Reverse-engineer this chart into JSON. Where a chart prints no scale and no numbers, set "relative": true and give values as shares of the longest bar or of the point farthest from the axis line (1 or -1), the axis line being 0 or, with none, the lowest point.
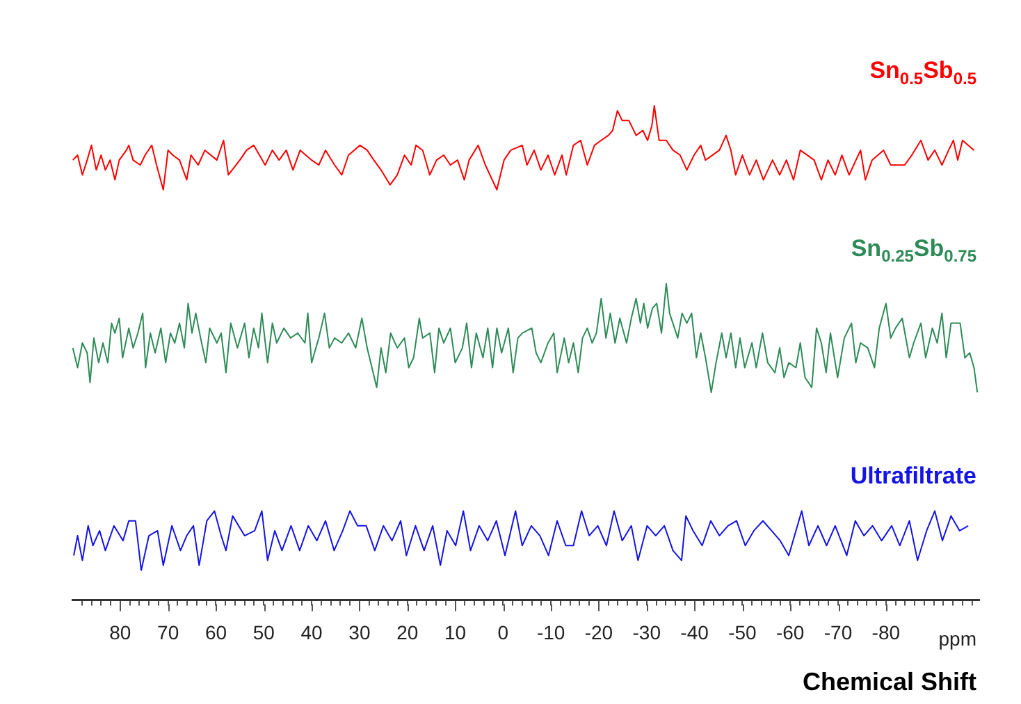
{
  "chart_data": {
    "type": "line",
    "relative": true,
    "xlabel": "Chemical Shift",
    "annotations": [
      "ppm"
    ],
    "marker": "none",
    "line_style": "solid",
    "xlim": [
      90,
      -99.5
    ],
    "xticks": [
      80,
      70,
      60,
      50,
      40,
      30,
      20,
      10,
      0,
      -10,
      -20,
      -30,
      -40,
      -50,
      -60,
      -70,
      -80,
      {
        "value": -90,
        "label": null
      },
      {
        "value": 88,
        "label": null
      },
      {
        "value": 86,
        "label": null
      },
      {
        "value": 84,
        "label": null
      },
      {
        "value": 82,
        "label": null
      },
      {
        "value": 78,
        "label": null
      },
      {
        "value": 76,
        "label": null
      },
      {
        "value": 74,
        "label": null
      },
      {
        "value": 72,
        "label": null
      },
      {
        "value": 68,
        "label": null
      },
      {
        "value": 66,
        "label": null
      },
      {
        "value": 64,
        "label": null
      },
      {
        "value": 62,
        "label": null
      },
      {
        "value": 58,
        "label": null
      },
      {
        "value": 56,
        "label": null
      },
      {
        "value": 54,
        "label": null
      },
      {
        "value": 52,
        "label": null
      },
      {
        "value": 48,
        "label": null
      },
      {
        "value": 46,
        "label": null
      },
      {
        "value": 44,
        "label": null
      },
      {
        "value": 42,
        "label": null
      },
      {
        "value": 38,
        "label": null
      },
      {
        "value": 36,
        "label": null
      },
      {
        "value": 34,
        "label": null
      },
      {
        "value": 32,
        "label": null
      },
      {
        "value": 28,
        "label": null
      },
      {
        "value": 26,
        "label": null
      },
      {
        "value": 24,
        "label": null
      },
      {
        "value": 22,
        "label": null
      },
      {
        "value": 18,
        "label": null
      },
      {
        "value": 16,
        "label": null
      },
      {
        "value": 14,
        "label": null
      },
      {
        "value": 12,
        "label": null
      },
      {
        "value": 8,
        "label": null
      },
      {
        "value": 6,
        "label": null
      },
      {
        "value": 4,
        "label": null
      },
      {
        "value": 2,
        "label": null
      },
      {
        "value": -2,
        "label": null
      },
      {
        "value": -4,
        "label": null
      },
      {
        "value": -6,
        "label": null
      },
      {
        "value": -8,
        "label": null
      },
      {
        "value": -12,
        "label": null
      },
      {
        "value": -14,
        "label": null
      },
      {
        "value": -16,
        "label": null
      },
      {
        "value": -18,
        "label": null
      },
      {
        "value": -22,
        "label": null
      },
      {
        "value": -24,
        "label": null
      },
      {
        "value": -26,
        "label": null
      },
      {
        "value": -28,
        "label": null
      },
      {
        "value": -32,
        "label": null
      },
      {
        "value": -34,
        "label": null
      },
      {
        "value": -36,
        "label": null
      },
      {
        "value": -38,
        "label": null
      },
      {
        "value": -42,
        "label": null
      },
      {
        "value": -44,
        "label": null
      },
      {
        "value": -46,
        "label": null
      },
      {
        "value": -48,
        "label": null
      },
      {
        "value": -52,
        "label": null
      },
      {
        "value": -54,
        "label": null
      },
      {
        "value": -56,
        "label": null
      },
      {
        "value": -58,
        "label": null
      },
      {
        "value": -62,
        "label": null
      },
      {
        "value": -64,
        "label": null
      },
      {
        "value": -66,
        "label": null
      },
      {
        "value": -68,
        "label": null
      },
      {
        "value": -72,
        "label": null
      },
      {
        "value": -74,
        "label": null
      },
      {
        "value": -76,
        "label": null
      },
      {
        "value": -78,
        "label": null
      },
      {
        "value": -82,
        "label": null
      },
      {
        "value": -84,
        "label": null
      },
      {
        "value": -86,
        "label": null
      },
      {
        "value": -88,
        "label": null
      },
      {
        "value": -92,
        "label": null
      },
      {
        "value": -94,
        "label": null
      },
      {
        "value": -96,
        "label": null
      },
      {
        "value": -98,
        "label": null
      }
    ],
    "series": [
      {
        "name": "Sn$_{0.5}$Sb$_{0.5}$",
        "color": "#ff0000",
        "x": [
          89.9,
          88.9,
          87.9,
          86.9,
          86.0,
          85.0,
          84.0,
          83.1,
          82.1,
          81.1,
          80.2,
          78.7,
          78.2,
          77.3,
          75.8,
          74.8,
          73.4,
          72.4,
          71.0,
          70.0,
          69.0,
          67.6,
          66.1,
          65.2,
          63.7,
          62.3,
          59.8,
          58.4,
          57.4,
          55.0,
          53.6,
          52.1,
          49.7,
          48.2,
          46.8,
          45.3,
          43.9,
          42.4,
          40.0,
          38.5,
          37.1,
          35.2,
          33.7,
          32.3,
          29.9,
          28.4,
          27.0,
          25.5,
          23.6,
          22.1,
          20.6,
          19.2,
          18.2,
          16.8,
          15.3,
          13.9,
          12.4,
          11.0,
          9.5,
          8.1,
          7.1,
          5.2,
          3.7,
          1.3,
          -0.2,
          -1.6,
          -4.0,
          -5.0,
          -6.5,
          -7.9,
          -9.4,
          -10.8,
          -12.3,
          -13.2,
          -14.7,
          -16.2,
          -17.6,
          -19.1,
          -20.5,
          -22.0,
          -22.9,
          -23.9,
          -24.9,
          -26.3,
          -27.8,
          -29.2,
          -30.2,
          -31.1,
          -31.6,
          -32.6,
          -34.1,
          -35.5,
          -37.0,
          -38.4,
          -39.9,
          -41.3,
          -42.3,
          -45.2,
          -46.6,
          -47.6,
          -48.6,
          -50.0,
          -51.5,
          -52.9,
          -54.4,
          -56.3,
          -57.8,
          -59.2,
          -60.7,
          -62.1,
          -65.0,
          -66.5,
          -67.9,
          -69.4,
          -70.8,
          -72.3,
          -74.7,
          -75.7,
          -77.1,
          -79.5,
          -81.0,
          -83.9,
          -85.4,
          -87.3,
          -88.8,
          -90.2,
          -91.7,
          -93.1,
          -94.1,
          -95.0,
          -96.0,
          -98.4
        ],
        "values": [
          0.89,
          0.9,
          0.86,
          0.89,
          0.92,
          0.87,
          0.9,
          0.87,
          0.89,
          0.85,
          0.89,
          0.91,
          0.92,
          0.89,
          0.88,
          0.9,
          0.92,
          0.88,
          0.83,
          0.91,
          0.9,
          0.89,
          0.85,
          0.9,
          0.88,
          0.91,
          0.89,
          0.93,
          0.86,
          0.89,
          0.91,
          0.92,
          0.88,
          0.91,
          0.89,
          0.91,
          0.87,
          0.91,
          0.89,
          0.88,
          0.91,
          0.88,
          0.86,
          0.9,
          0.92,
          0.91,
          0.89,
          0.87,
          0.84,
          0.86,
          0.9,
          0.88,
          0.92,
          0.91,
          0.86,
          0.89,
          0.9,
          0.88,
          0.89,
          0.85,
          0.89,
          0.92,
          0.88,
          0.83,
          0.89,
          0.91,
          0.92,
          0.88,
          0.91,
          0.87,
          0.9,
          0.86,
          0.9,
          0.86,
          0.92,
          0.93,
          0.88,
          0.92,
          0.93,
          0.94,
          0.95,
          0.99,
          0.97,
          0.97,
          0.94,
          0.95,
          0.93,
          0.96,
          1.0,
          0.93,
          0.93,
          0.91,
          0.9,
          0.87,
          0.9,
          0.92,
          0.89,
          0.91,
          0.94,
          0.91,
          0.86,
          0.9,
          0.86,
          0.89,
          0.85,
          0.89,
          0.86,
          0.89,
          0.85,
          0.91,
          0.89,
          0.85,
          0.89,
          0.86,
          0.9,
          0.86,
          0.91,
          0.85,
          0.89,
          0.91,
          0.88,
          0.88,
          0.9,
          0.93,
          0.89,
          0.91,
          0.88,
          0.91,
          0.93,
          0.89,
          0.93,
          0.91
        ]
      },
      {
        "name": "Sn$_{0.25}$Sb$_{0.75}$",
        "color": "#2e8b57",
        "x": [
          89.9,
          88.9,
          87.9,
          86.9,
          86.3,
          85.5,
          84.5,
          83.6,
          82.6,
          81.8,
          81.1,
          80.2,
          79.5,
          78.2,
          77.3,
          76.3,
          75.3,
          74.7,
          73.7,
          72.7,
          71.5,
          70.5,
          69.5,
          68.6,
          67.6,
          66.6,
          65.8,
          65.0,
          64.2,
          63.2,
          62.1,
          61.3,
          59.8,
          58.9,
          57.9,
          56.9,
          55.5,
          54.0,
          53.1,
          52.1,
          51.1,
          50.4,
          49.2,
          48.2,
          47.3,
          45.8,
          44.4,
          42.9,
          41.4,
          40.8,
          40.0,
          38.5,
          37.3,
          36.3,
          35.2,
          33.7,
          32.3,
          30.8,
          29.5,
          28.4,
          27.4,
          26.4,
          25.5,
          24.5,
          23.5,
          22.1,
          20.6,
          19.7,
          18.7,
          17.5,
          16.8,
          15.3,
          14.3,
          13.4,
          12.4,
          11.0,
          10.0,
          8.5,
          7.6,
          6.6,
          5.6,
          4.2,
          3.2,
          2.2,
          1.3,
          0.3,
          -1.1,
          -2.1,
          -3.1,
          -4.0,
          -6.0,
          -6.9,
          -7.9,
          -9.4,
          -10.6,
          -11.3,
          -12.8,
          -13.7,
          -14.7,
          -15.7,
          -16.6,
          -17.6,
          -18.6,
          -19.5,
          -20.5,
          -21.5,
          -22.4,
          -23.4,
          -24.4,
          -25.8,
          -26.8,
          -27.8,
          -28.7,
          -29.4,
          -30.2,
          -31.2,
          -32.1,
          -33.1,
          -34.1,
          -34.8,
          -36.5,
          -37.4,
          -38.4,
          -39.4,
          -40.4,
          -41.3,
          -42.3,
          -43.5,
          -44.5,
          -45.7,
          -46.6,
          -47.6,
          -48.6,
          -49.5,
          -50.5,
          -52.0,
          -52.9,
          -54.2,
          -55.3,
          -56.8,
          -57.8,
          -58.7,
          -59.7,
          -61.2,
          -62.1,
          -63.1,
          -64.5,
          -65.5,
          -66.5,
          -67.5,
          -68.4,
          -69.9,
          -71.3,
          -72.8,
          -73.7,
          -74.7,
          -76.2,
          -77.6,
          -78.6,
          -80.0,
          -81.0,
          -82.0,
          -83.4,
          -84.9,
          -85.8,
          -87.3,
          -88.3,
          -89.7,
          -90.7,
          -91.7,
          -92.6,
          -93.6,
          -95.5,
          -96.5,
          -97.5,
          -98.4,
          -99.1
        ],
        "values": [
          0.51,
          0.47,
          0.52,
          0.5,
          0.44,
          0.53,
          0.48,
          0.52,
          0.48,
          0.56,
          0.54,
          0.57,
          0.49,
          0.55,
          0.51,
          0.54,
          0.58,
          0.47,
          0.54,
          0.5,
          0.55,
          0.48,
          0.54,
          0.52,
          0.56,
          0.51,
          0.6,
          0.54,
          0.58,
          0.53,
          0.48,
          0.55,
          0.52,
          0.54,
          0.46,
          0.56,
          0.51,
          0.56,
          0.49,
          0.55,
          0.51,
          0.58,
          0.48,
          0.56,
          0.52,
          0.55,
          0.53,
          0.54,
          0.52,
          0.58,
          0.48,
          0.53,
          0.58,
          0.51,
          0.53,
          0.52,
          0.54,
          0.51,
          0.57,
          0.51,
          0.47,
          0.43,
          0.51,
          0.46,
          0.54,
          0.51,
          0.53,
          0.47,
          0.49,
          0.57,
          0.53,
          0.54,
          0.46,
          0.55,
          0.52,
          0.55,
          0.48,
          0.51,
          0.56,
          0.47,
          0.54,
          0.49,
          0.55,
          0.47,
          0.55,
          0.5,
          0.55,
          0.46,
          0.53,
          0.54,
          0.55,
          0.5,
          0.48,
          0.52,
          0.54,
          0.46,
          0.53,
          0.48,
          0.52,
          0.46,
          0.53,
          0.55,
          0.52,
          0.54,
          0.61,
          0.53,
          0.58,
          0.52,
          0.57,
          0.52,
          0.57,
          0.61,
          0.56,
          0.6,
          0.55,
          0.59,
          0.6,
          0.54,
          0.64,
          0.58,
          0.53,
          0.58,
          0.56,
          0.58,
          0.49,
          0.54,
          0.49,
          0.42,
          0.48,
          0.54,
          0.49,
          0.54,
          0.47,
          0.53,
          0.47,
          0.52,
          0.47,
          0.54,
          0.48,
          0.46,
          0.51,
          0.45,
          0.48,
          0.47,
          0.52,
          0.45,
          0.43,
          0.55,
          0.52,
          0.46,
          0.54,
          0.45,
          0.53,
          0.56,
          0.48,
          0.52,
          0.51,
          0.47,
          0.55,
          0.6,
          0.53,
          0.55,
          0.57,
          0.49,
          0.52,
          0.56,
          0.49,
          0.55,
          0.52,
          0.58,
          0.49,
          0.56,
          0.56,
          0.49,
          0.5,
          0.47,
          0.42
        ]
      },
      {
        "name": "Ultrafiltrate",
        "color": "#1414e6",
        "x": [
          89.7,
          88.9,
          87.9,
          86.7,
          85.7,
          84.3,
          83.1,
          81.3,
          79.4,
          78.2,
          76.8,
          75.6,
          74.0,
          72.2,
          71.0,
          69.2,
          67.4,
          66.1,
          64.7,
          63.5,
          61.9,
          60.3,
          58.9,
          57.9,
          56.5,
          54.0,
          51.9,
          50.4,
          49.2,
          47.7,
          46.2,
          44.3,
          42.5,
          40.7,
          38.9,
          37.1,
          35.3,
          33.5,
          32.0,
          30.4,
          28.6,
          26.8,
          25.0,
          23.2,
          21.4,
          20.2,
          18.3,
          16.5,
          14.7,
          13.1,
          11.7,
          9.9,
          8.3,
          6.8,
          5.0,
          3.2,
          1.4,
          -0.4,
          -2.6,
          -4.0,
          -5.9,
          -7.7,
          -9.5,
          -11.3,
          -13.1,
          -14.7,
          -16.4,
          -18.0,
          -19.8,
          -21.6,
          -23.2,
          -24.9,
          -26.8,
          -28.2,
          -30.1,
          -31.9,
          -33.7,
          -35.5,
          -37.3,
          -38.2,
          -39.7,
          -41.6,
          -43.4,
          -45.2,
          -47.0,
          -48.8,
          -50.6,
          -52.4,
          -54.3,
          -56.1,
          -57.9,
          -59.7,
          -62.4,
          -63.9,
          -65.8,
          -67.6,
          -69.4,
          -71.8,
          -73.6,
          -75.4,
          -77.2,
          -79.1,
          -81.2,
          -82.9,
          -84.9,
          -86.6,
          -88.5,
          -90.2,
          -91.8,
          -93.6,
          -95.4,
          -97.2
        ],
        "values": [
          0.09,
          0.13,
          0.08,
          0.15,
          0.11,
          0.14,
          0.1,
          0.15,
          0.12,
          0.16,
          0.16,
          0.06,
          0.13,
          0.14,
          0.07,
          0.15,
          0.1,
          0.13,
          0.15,
          0.07,
          0.16,
          0.18,
          0.13,
          0.1,
          0.17,
          0.13,
          0.14,
          0.18,
          0.08,
          0.14,
          0.1,
          0.15,
          0.1,
          0.15,
          0.12,
          0.16,
          0.1,
          0.14,
          0.18,
          0.15,
          0.15,
          0.1,
          0.15,
          0.12,
          0.16,
          0.09,
          0.15,
          0.1,
          0.15,
          0.07,
          0.14,
          0.11,
          0.18,
          0.1,
          0.15,
          0.12,
          0.16,
          0.09,
          0.18,
          0.11,
          0.15,
          0.13,
          0.09,
          0.16,
          0.11,
          0.11,
          0.18,
          0.13,
          0.15,
          0.11,
          0.18,
          0.12,
          0.15,
          0.08,
          0.15,
          0.13,
          0.15,
          0.1,
          0.08,
          0.17,
          0.14,
          0.11,
          0.16,
          0.13,
          0.15,
          0.16,
          0.11,
          0.14,
          0.16,
          0.14,
          0.12,
          0.09,
          0.18,
          0.11,
          0.15,
          0.11,
          0.15,
          0.09,
          0.16,
          0.13,
          0.15,
          0.12,
          0.15,
          0.11,
          0.16,
          0.08,
          0.14,
          0.18,
          0.12,
          0.17,
          0.14,
          0.15
        ]
      }
    ]
  }
}
